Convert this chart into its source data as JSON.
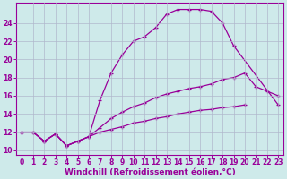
{
  "background_color": "#ceeaea",
  "grid_color": "#b0b8cc",
  "line_color": "#990099",
  "xlim": [
    -0.5,
    23.5
  ],
  "ylim": [
    9.5,
    26.2
  ],
  "xticks": [
    0,
    1,
    2,
    3,
    4,
    5,
    6,
    7,
    8,
    9,
    10,
    11,
    12,
    13,
    14,
    15,
    16,
    17,
    18,
    19,
    20,
    21,
    22,
    23
  ],
  "yticks": [
    10,
    12,
    14,
    16,
    18,
    20,
    22,
    24
  ],
  "xlabel": "Windchill (Refroidissement éolien,°C)",
  "line1_x": [
    0,
    1,
    2,
    3,
    4,
    5,
    6,
    7,
    8,
    9,
    10,
    11,
    12,
    13,
    14,
    15,
    16,
    17,
    18,
    19,
    23
  ],
  "line1_y": [
    12,
    12,
    11,
    11.8,
    10.5,
    11,
    11.5,
    15.5,
    18.5,
    20.5,
    22,
    22.5,
    23.5,
    25,
    25.5,
    25.5,
    25.5,
    25.3,
    24,
    21.5,
    15
  ],
  "line2_x": [
    0,
    1,
    2,
    3,
    4,
    5,
    6,
    7,
    8,
    9,
    10,
    11,
    12,
    13,
    14,
    15,
    16,
    17,
    18,
    19,
    20,
    21,
    22,
    23
  ],
  "line2_y": [
    12,
    12,
    11,
    11.8,
    10.5,
    11,
    11.5,
    12.5,
    13.5,
    14.2,
    14.8,
    15.2,
    15.8,
    16.2,
    16.5,
    16.8,
    17,
    17.3,
    17.8,
    18,
    18.5,
    17,
    16.5,
    16
  ],
  "line3_x": [
    0,
    1,
    2,
    3,
    4,
    5,
    6,
    7,
    8,
    9,
    10,
    11,
    12,
    13,
    14,
    15,
    16,
    17,
    18,
    19,
    20,
    21,
    22,
    23
  ],
  "line3_y": [
    12,
    12,
    11,
    11.8,
    10.5,
    11,
    11.5,
    12,
    12.3,
    12.6,
    13,
    13.2,
    13.5,
    13.7,
    14,
    14.2,
    14.4,
    14.5,
    14.7,
    14.8,
    15,
    null,
    null,
    null
  ],
  "tick_fontsize": 5.5,
  "axis_fontsize": 6.5
}
